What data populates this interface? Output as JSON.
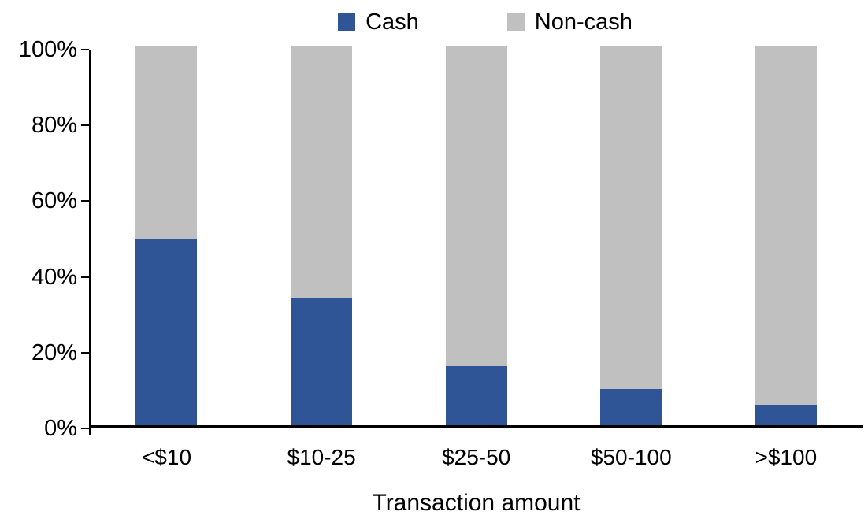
{
  "chart": {
    "legend_cash": "Cash",
    "legend_noncash": "Non-cash",
    "cash_color": "#2F5596",
    "noncash_color": "#C0C0C0",
    "axis_color": "#000000"
  },
  "chart_data": {
    "type": "bar",
    "stacked": true,
    "stacked_to_100_percent": true,
    "categories": [
      "<$10",
      "$10-25",
      "$25-50",
      "$50-100",
      ">$100"
    ],
    "series": [
      {
        "name": "Cash",
        "color": "#2F5596",
        "values": [
          49,
          33.5,
          15.5,
          9.5,
          5.5
        ]
      },
      {
        "name": "Non-cash",
        "color": "#C0C0C0",
        "values": [
          51,
          66.5,
          84.5,
          90.5,
          94.5
        ]
      }
    ],
    "title": "",
    "xlabel": "Transaction amount",
    "ylabel": "",
    "ylim": [
      0,
      100
    ],
    "yticks": [
      "0%",
      "20%",
      "40%",
      "60%",
      "80%",
      "100%"
    ],
    "grid": false,
    "legend_position": "top"
  }
}
